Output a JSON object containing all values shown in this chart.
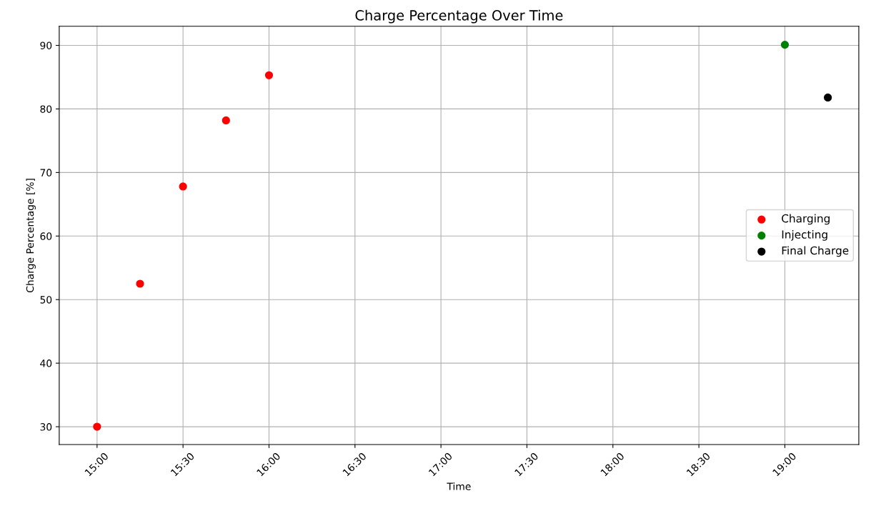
{
  "chart_data": {
    "type": "scatter",
    "title": "Charge Percentage Over Time",
    "xlabel": "Time",
    "ylabel": "Charge Percentage [%]",
    "series": [
      {
        "name": "Charging",
        "color": "#ff0000",
        "x": [
          15.0,
          15.25,
          15.5,
          15.75,
          16.0
        ],
        "values": [
          30,
          52.5,
          67.8,
          78.2,
          85.3
        ]
      },
      {
        "name": "Injecting",
        "color": "#008000",
        "x": [
          19.0
        ],
        "values": [
          90.1
        ]
      },
      {
        "name": "Final Charge",
        "color": "#000000",
        "x": [
          19.25
        ],
        "values": [
          81.8
        ]
      }
    ],
    "xlim": [
      14.78,
      19.43
    ],
    "ylim": [
      27.2,
      93.0
    ],
    "xticks": [
      {
        "value": 15,
        "label": "15:00"
      },
      {
        "value": 15.5,
        "label": "15:30"
      },
      {
        "value": 16,
        "label": "16:00"
      },
      {
        "value": 16.5,
        "label": "16:30"
      },
      {
        "value": 17,
        "label": "17:00"
      },
      {
        "value": 17.5,
        "label": "17:30"
      },
      {
        "value": 18,
        "label": "18:00"
      },
      {
        "value": 18.5,
        "label": "18:30"
      },
      {
        "value": 19,
        "label": "19:00"
      }
    ],
    "yticks": [
      30,
      40,
      50,
      60,
      70,
      80,
      90
    ],
    "grid": true,
    "legend": "center right",
    "marker": "circle"
  }
}
